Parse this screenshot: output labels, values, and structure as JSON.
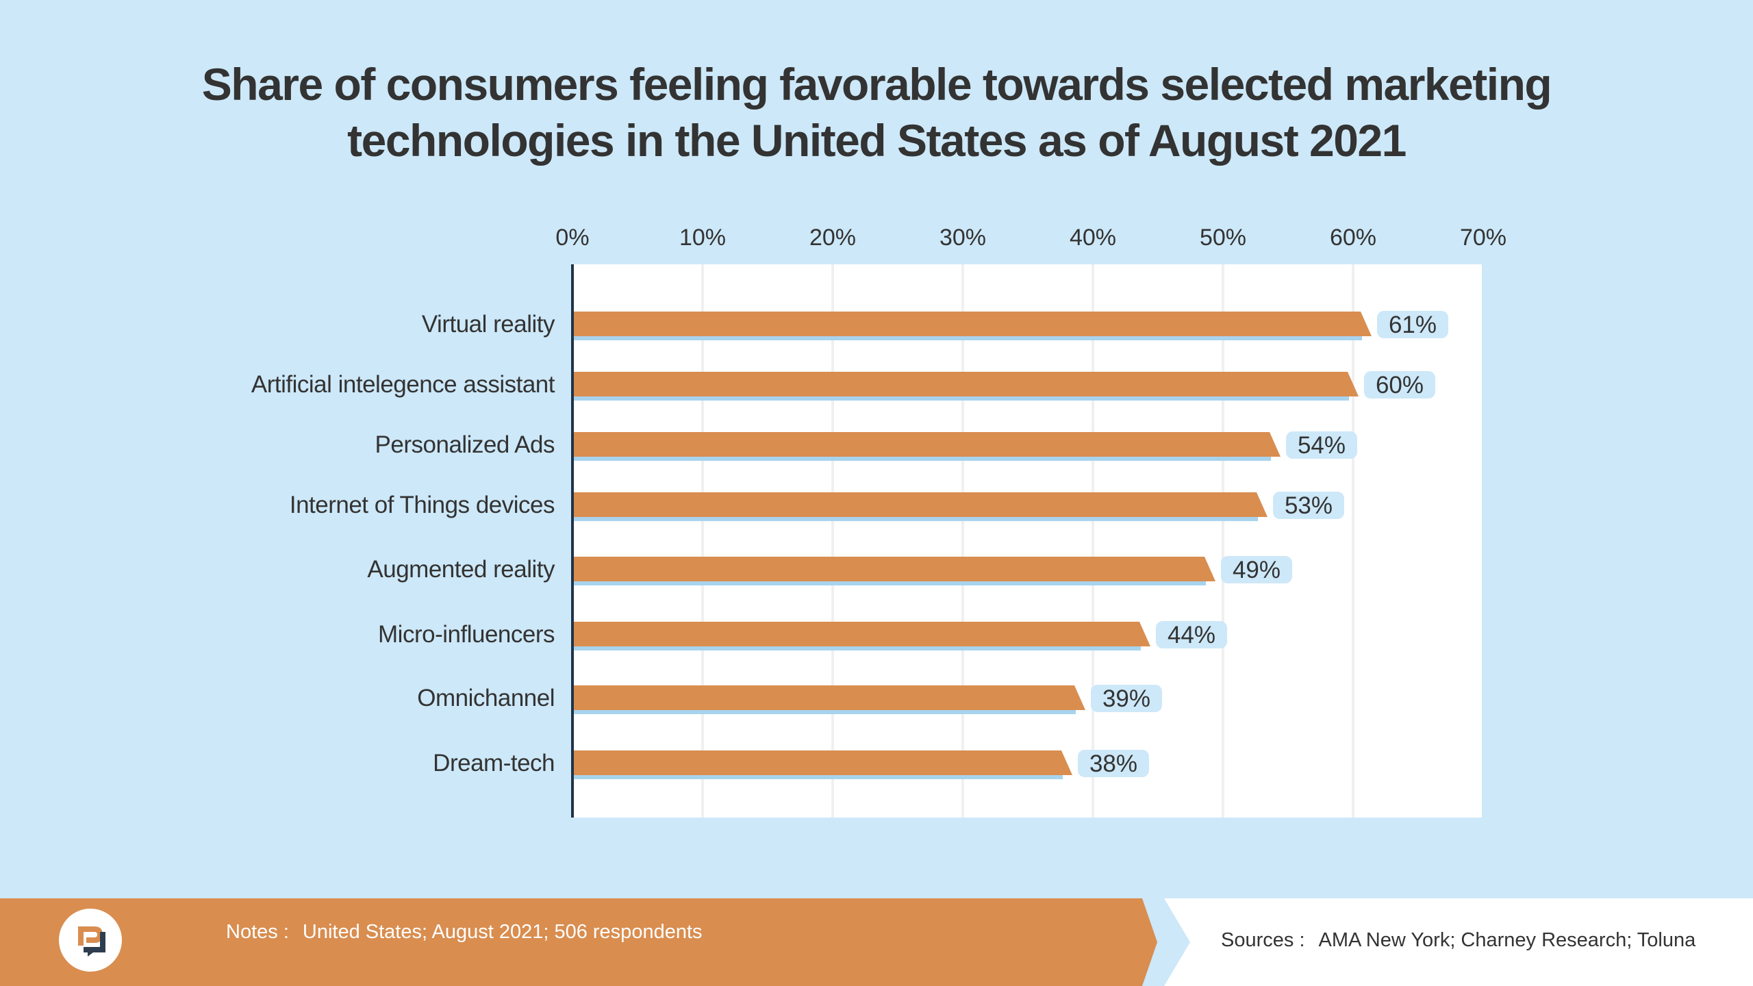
{
  "chart_data": {
    "type": "bar",
    "orientation": "horizontal",
    "title_lines": [
      "Share of consumers feeling favorable towards selected marketing",
      "technologies in the United States as of August 2021"
    ],
    "categories": [
      "Virtual reality",
      "Artificial intelegence assistant",
      "Personalized Ads",
      "Internet of Things devices",
      "Augmented reality",
      "Micro-influencers",
      "Omnichannel",
      "Dream-tech"
    ],
    "values": [
      61,
      60,
      54,
      53,
      49,
      44,
      39,
      38
    ],
    "value_labels": [
      "61%",
      "60%",
      "54%",
      "53%",
      "49%",
      "44%",
      "39%",
      "38%"
    ],
    "x_ticks": [
      0,
      10,
      20,
      30,
      40,
      50,
      60,
      70
    ],
    "x_tick_labels": [
      "0%",
      "10%",
      "20%",
      "30%",
      "40%",
      "50%",
      "60%",
      "70%"
    ],
    "xlim": [
      0,
      70
    ],
    "xlabel": "",
    "ylabel": "",
    "grid": true,
    "axis_position": "top",
    "colors": {
      "bar": "#d98d4f",
      "bar_shadow": "#a8d3ee",
      "label_bg": "#cde8f8",
      "axis": "#1f3348"
    }
  },
  "footer": {
    "notes_label": "Notes :",
    "notes_text": "United States; August 2021; 506 respondents",
    "sources_label": "Sources :",
    "sources_text": "AMA New York; Charney Research; Toluna"
  },
  "logo": {
    "icon": "brand-logo-icon"
  }
}
